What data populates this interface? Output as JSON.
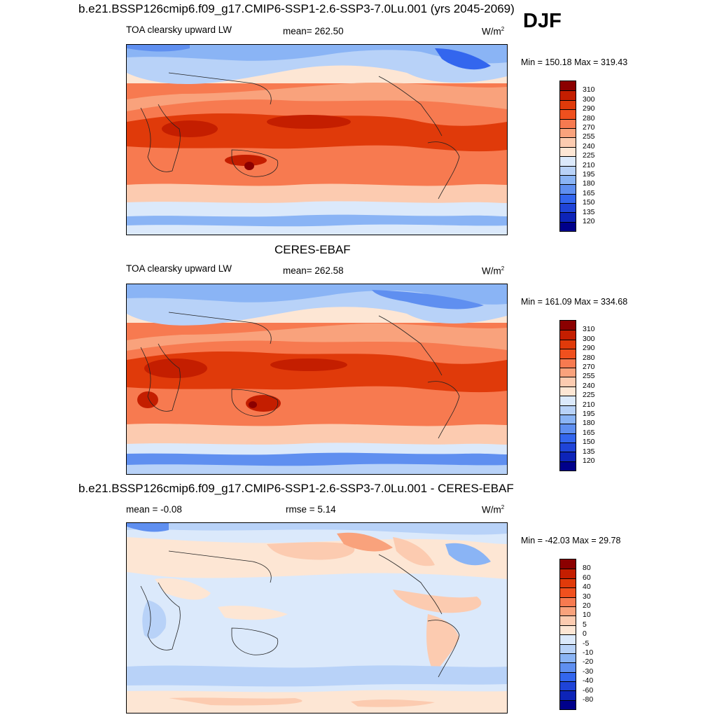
{
  "season": "DJF",
  "units_base": "W/m",
  "units_exp": "2",
  "panels": [
    {
      "id": "model",
      "title": "b.e21.BSSP126cmip6.f09_g17.CMIP6-SSP1-2.6-SSP3-7.0Lu.001 (yrs 2045-2069)",
      "left_label": "TOA clearsky upward LW",
      "center_label": "mean= 262.50",
      "minmax": "Min = 150.18 Max = 319.43"
    },
    {
      "id": "obs",
      "title": "CERES-EBAF",
      "left_label": "TOA clearsky upward LW",
      "center_label": "mean= 262.58",
      "minmax": "Min = 161.09 Max = 334.68"
    },
    {
      "id": "diff",
      "title": "b.e21.BSSP126cmip6.f09_g17.CMIP6-SSP1-2.6-SSP3-7.0Lu.001 - CERES-EBAF",
      "left_label": "mean =  -0.08",
      "center_label": "rmse =   5.14",
      "minmax": "Min = -42.03 Max =  29.78"
    }
  ],
  "colorbar_abs": {
    "levels": [
      "310",
      "300",
      "290",
      "280",
      "270",
      "255",
      "240",
      "225",
      "210",
      "195",
      "180",
      "165",
      "150",
      "135",
      "120"
    ],
    "colors": [
      "#8b0000",
      "#c41e00",
      "#e03a0a",
      "#f0501e",
      "#f77a50",
      "#f9a27c",
      "#fccbb0",
      "#fde6d4",
      "#dbe9fb",
      "#b8d2f8",
      "#8ab4f5",
      "#5f8ff0",
      "#3366ee",
      "#1f44d8",
      "#0d24b8",
      "#00008b"
    ]
  },
  "colorbar_diff": {
    "levels": [
      "80",
      "60",
      "40",
      "30",
      "20",
      "10",
      "5",
      "0",
      "-5",
      "-10",
      "-20",
      "-30",
      "-40",
      "-60",
      "-80"
    ],
    "colors": [
      "#8b0000",
      "#c41e00",
      "#e03a0a",
      "#f0501e",
      "#f77a50",
      "#f9a27c",
      "#fccbb0",
      "#fde6d4",
      "#dbe9fb",
      "#b8d2f8",
      "#8ab4f5",
      "#5f8ff0",
      "#3366ee",
      "#1f44d8",
      "#0d24b8",
      "#00008b"
    ]
  }
}
